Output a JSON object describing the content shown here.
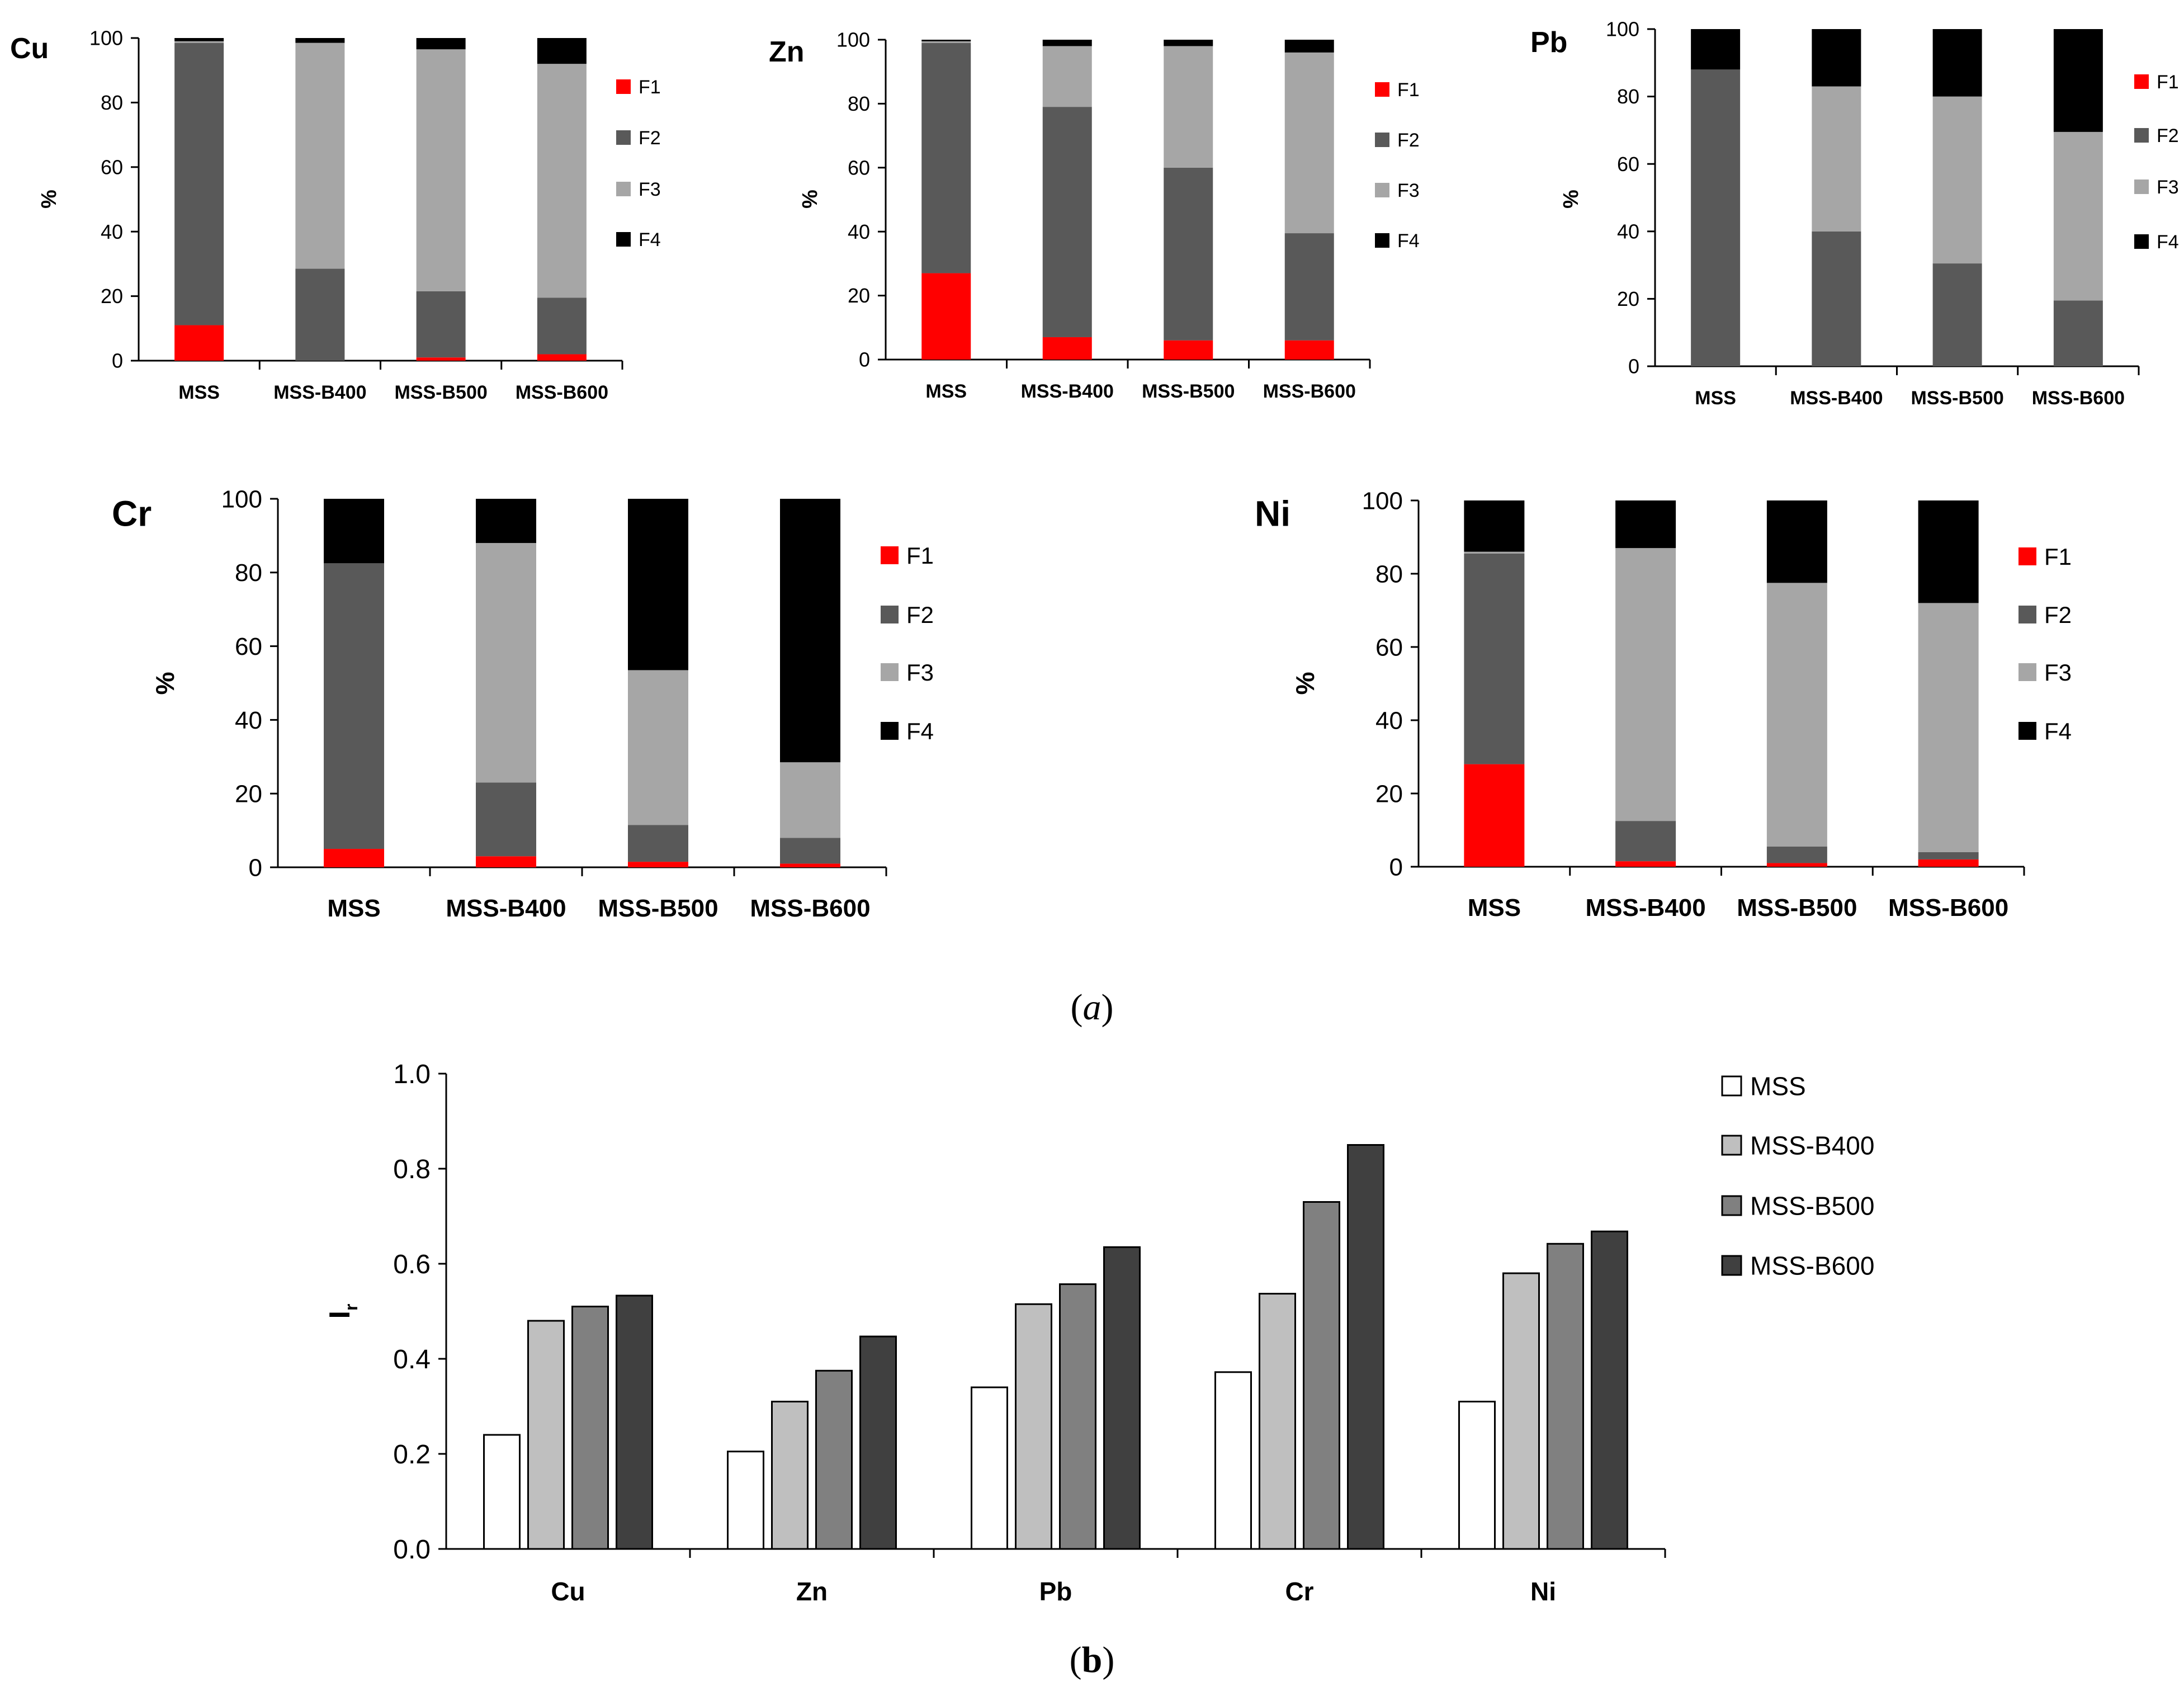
{
  "colors": {
    "F1": "#ff0000",
    "F2": "#595959",
    "F3": "#a6a6a6",
    "F4": "#000000"
  },
  "captions": {
    "a": "(a)",
    "a_letter": "a",
    "b": "(b)",
    "b_letter": "b"
  },
  "chart_data": [
    {
      "id": "cu",
      "type": "bar",
      "stacked": true,
      "title": "Cu",
      "ylabel": "%",
      "ylim": [
        0,
        100
      ],
      "yticks": [
        0,
        20,
        40,
        60,
        80,
        100
      ],
      "categories": [
        "MSS",
        "MSS-B400",
        "MSS-B500",
        "MSS-B600"
      ],
      "series": [
        {
          "name": "F1",
          "values": [
            11,
            0,
            1,
            2
          ]
        },
        {
          "name": "F2",
          "values": [
            87.5,
            28.5,
            20.5,
            17.5
          ]
        },
        {
          "name": "F3",
          "values": [
            0.5,
            70,
            75,
            72.5
          ]
        },
        {
          "name": "F4",
          "values": [
            1,
            1.5,
            3.5,
            8
          ]
        }
      ]
    },
    {
      "id": "zn",
      "type": "bar",
      "stacked": true,
      "title": "Zn",
      "ylabel": "%",
      "ylim": [
        0,
        100
      ],
      "yticks": [
        0,
        20,
        40,
        60,
        80,
        100
      ],
      "categories": [
        "MSS",
        "MSS-B400",
        "MSS-B500",
        "MSS-B600"
      ],
      "series": [
        {
          "name": "F1",
          "values": [
            27,
            7,
            6,
            6
          ]
        },
        {
          "name": "F2",
          "values": [
            72,
            72,
            54,
            33.5
          ]
        },
        {
          "name": "F3",
          "values": [
            0.5,
            19,
            38,
            56.5
          ]
        },
        {
          "name": "F4",
          "values": [
            0.5,
            2,
            2,
            4
          ]
        }
      ]
    },
    {
      "id": "pb",
      "type": "bar",
      "stacked": true,
      "title": "Pb",
      "ylabel": "%",
      "ylim": [
        0,
        100
      ],
      "yticks": [
        0,
        20,
        40,
        60,
        80,
        100
      ],
      "categories": [
        "MSS",
        "MSS-B400",
        "MSS-B500",
        "MSS-B600"
      ],
      "series": [
        {
          "name": "F1",
          "values": [
            0,
            0,
            0,
            0
          ]
        },
        {
          "name": "F2",
          "values": [
            88,
            40,
            30.5,
            19.5
          ]
        },
        {
          "name": "F3",
          "values": [
            0,
            43,
            49.5,
            50
          ]
        },
        {
          "name": "F4",
          "values": [
            12,
            17,
            20,
            30.5
          ]
        }
      ]
    },
    {
      "id": "cr",
      "type": "bar",
      "stacked": true,
      "title": "Cr",
      "ylabel": "%",
      "ylim": [
        0,
        100
      ],
      "yticks": [
        0,
        20,
        40,
        60,
        80,
        100
      ],
      "categories": [
        "MSS",
        "MSS-B400",
        "MSS-B500",
        "MSS-B600"
      ],
      "series": [
        {
          "name": "F1",
          "values": [
            5,
            3,
            1.5,
            1
          ]
        },
        {
          "name": "F2",
          "values": [
            77.5,
            20,
            10,
            7
          ]
        },
        {
          "name": "F3",
          "values": [
            0,
            65,
            42,
            20.5
          ]
        },
        {
          "name": "F4",
          "values": [
            17.5,
            12,
            46.5,
            71.5
          ]
        }
      ]
    },
    {
      "id": "ni",
      "type": "bar",
      "stacked": true,
      "title": "Ni",
      "ylabel": "%",
      "ylim": [
        0,
        100
      ],
      "yticks": [
        0,
        20,
        40,
        60,
        80,
        100
      ],
      "categories": [
        "MSS",
        "MSS-B400",
        "MSS-B500",
        "MSS-B600"
      ],
      "series": [
        {
          "name": "F1",
          "values": [
            28,
            1.5,
            1,
            2
          ]
        },
        {
          "name": "F2",
          "values": [
            57.5,
            11,
            4.5,
            2
          ]
        },
        {
          "name": "F3",
          "values": [
            0.5,
            74.5,
            72,
            68
          ]
        },
        {
          "name": "F4",
          "values": [
            14,
            13,
            22.5,
            28
          ]
        }
      ]
    },
    {
      "id": "ir",
      "type": "bar",
      "stacked": false,
      "title": "",
      "ylabel": "I",
      "ylabel_sub": "r",
      "ylim": [
        0,
        1
      ],
      "yticks": [
        "0.0",
        "0.2",
        "0.4",
        "0.6",
        "0.8",
        "1.0"
      ],
      "categories": [
        "Cu",
        "Zn",
        "Pb",
        "Cr",
        "Ni"
      ],
      "legend_position": "right",
      "series": [
        {
          "name": "MSS",
          "color": "#ffffff",
          "values": [
            0.24,
            0.205,
            0.34,
            0.372,
            0.31
          ]
        },
        {
          "name": "MSS-B400",
          "color": "#bfbfbf",
          "values": [
            0.48,
            0.31,
            0.515,
            0.537,
            0.58
          ]
        },
        {
          "name": "MSS-B500",
          "color": "#808080",
          "values": [
            0.51,
            0.375,
            0.557,
            0.73,
            0.642
          ]
        },
        {
          "name": "MSS-B600",
          "color": "#404040",
          "values": [
            0.533,
            0.447,
            0.635,
            0.85,
            0.668
          ]
        }
      ]
    }
  ]
}
